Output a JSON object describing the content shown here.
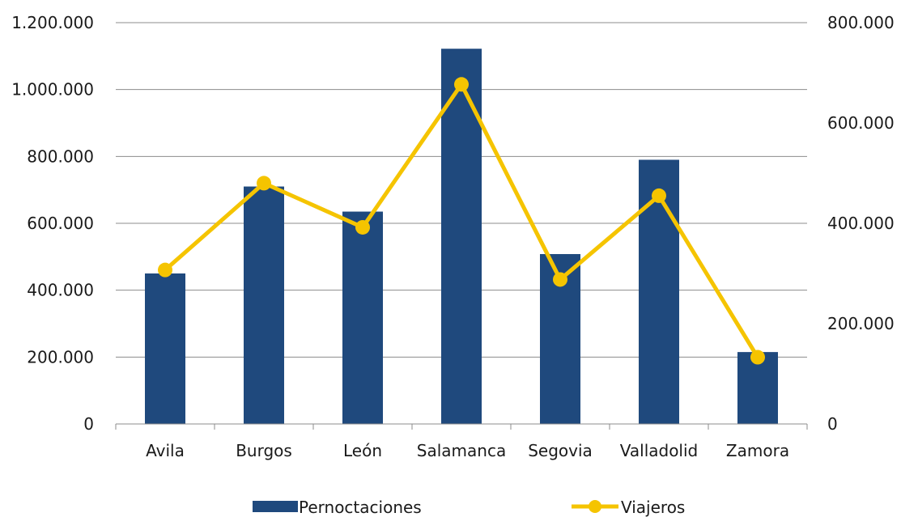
{
  "chart_data": {
    "type": "bar",
    "categories": [
      "Avila",
      "Burgos",
      "León",
      "Salamanca",
      "Segovia",
      "Valladolid",
      "Zamora"
    ],
    "series": [
      {
        "name": "Pernoctaciones",
        "type": "bar",
        "axis": "left",
        "color": "#1f497d",
        "values": [
          450000,
          710000,
          635000,
          1122000,
          508000,
          790000,
          215000
        ]
      },
      {
        "name": "Viajeros",
        "type": "line",
        "axis": "right",
        "color": "#f5c400",
        "marker": "circle",
        "values": [
          307000,
          480000,
          392000,
          677000,
          288000,
          455000,
          133000
        ]
      }
    ],
    "y_left": {
      "ylim": [
        0,
        1200000
      ],
      "ticks": [
        "0",
        "200.000",
        "400.000",
        "600.000",
        "800.000",
        "1.000.000",
        "1.200.000"
      ]
    },
    "y_right": {
      "ylim": [
        0,
        800000
      ],
      "ticks": [
        "0",
        "200.000",
        "400.000",
        "600.000",
        "800.000"
      ]
    },
    "grid": true,
    "legend": "bottom",
    "title": "",
    "xlabel": "",
    "ylabel": ""
  }
}
